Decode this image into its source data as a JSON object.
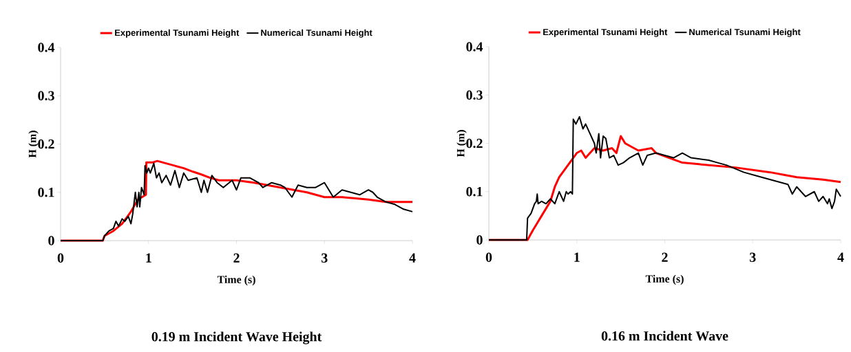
{
  "chart_data": [
    {
      "type": "line",
      "title": "0.19 m Incident Wave Height",
      "xlabel": "Time (s)",
      "ylabel": "H (m)",
      "xlim": [
        0,
        4
      ],
      "ylim": [
        0,
        0.4
      ],
      "xticks": [
        0,
        1,
        2,
        3,
        4
      ],
      "yticks": [
        0,
        0.1,
        0.2,
        0.3,
        0.4
      ],
      "legend": "top",
      "marker": "none",
      "series": [
        {
          "name": "Experimental Tsunami Height",
          "color": "#ff0000",
          "x": [
            0,
            0.48,
            0.5,
            0.6,
            0.7,
            0.8,
            0.88,
            0.97,
            0.975,
            1.05,
            1.1,
            1.2,
            1.3,
            1.4,
            1.5,
            1.6,
            1.7,
            1.8,
            2.0,
            2.2,
            2.5,
            2.8,
            3.0,
            3.2,
            3.5,
            3.7,
            4.0
          ],
          "values": [
            0,
            0,
            0.01,
            0.02,
            0.035,
            0.06,
            0.085,
            0.095,
            0.162,
            0.162,
            0.165,
            0.16,
            0.155,
            0.15,
            0.143,
            0.137,
            0.13,
            0.125,
            0.125,
            0.12,
            0.11,
            0.1,
            0.09,
            0.09,
            0.085,
            0.08,
            0.08
          ]
        },
        {
          "name": "Numerical Tsunami Height",
          "color": "#000000",
          "x": [
            0,
            0.48,
            0.5,
            0.55,
            0.6,
            0.63,
            0.66,
            0.7,
            0.73,
            0.77,
            0.8,
            0.82,
            0.85,
            0.87,
            0.89,
            0.9,
            0.92,
            0.95,
            0.96,
            0.98,
            1.0,
            1.02,
            1.06,
            1.09,
            1.12,
            1.15,
            1.2,
            1.25,
            1.3,
            1.35,
            1.4,
            1.45,
            1.55,
            1.6,
            1.63,
            1.67,
            1.72,
            1.78,
            1.85,
            1.95,
            2.0,
            2.05,
            2.15,
            2.25,
            2.3,
            2.4,
            2.5,
            2.55,
            2.63,
            2.7,
            2.8,
            2.9,
            3.0,
            3.1,
            3.2,
            3.3,
            3.4,
            3.5,
            3.55,
            3.6,
            3.7,
            3.8,
            3.9,
            4.0
          ],
          "values": [
            0,
            0,
            0.01,
            0.02,
            0.025,
            0.04,
            0.03,
            0.045,
            0.04,
            0.05,
            0.035,
            0.055,
            0.1,
            0.07,
            0.1,
            0.07,
            0.11,
            0.095,
            0.155,
            0.14,
            0.15,
            0.14,
            0.16,
            0.13,
            0.14,
            0.12,
            0.135,
            0.115,
            0.145,
            0.11,
            0.14,
            0.125,
            0.13,
            0.1,
            0.125,
            0.1,
            0.135,
            0.12,
            0.11,
            0.125,
            0.105,
            0.13,
            0.13,
            0.12,
            0.11,
            0.12,
            0.115,
            0.11,
            0.09,
            0.115,
            0.11,
            0.11,
            0.12,
            0.09,
            0.105,
            0.1,
            0.095,
            0.105,
            0.1,
            0.09,
            0.08,
            0.075,
            0.065,
            0.06
          ]
        }
      ]
    },
    {
      "type": "line",
      "title": "0.16 m Incident Wave",
      "xlabel": "Time (s)",
      "ylabel": "H (m)",
      "xlim": [
        0,
        4
      ],
      "ylim": [
        0,
        0.4
      ],
      "xticks": [
        0,
        1,
        2,
        3,
        4
      ],
      "yticks": [
        0,
        0.1,
        0.2,
        0.3,
        0.4
      ],
      "legend": "top",
      "marker": "none",
      "series": [
        {
          "name": "Experimental Tsunami Height",
          "color": "#ff0000",
          "x": [
            0,
            0.44,
            0.5,
            0.55,
            0.6,
            0.7,
            0.75,
            0.8,
            0.9,
            1.0,
            1.05,
            1.1,
            1.2,
            1.3,
            1.4,
            1.45,
            1.5,
            1.55,
            1.6,
            1.7,
            1.85,
            1.9,
            2.2,
            2.5,
            2.8,
            3.0,
            3.2,
            3.5,
            3.8,
            4.0
          ],
          "values": [
            0,
            0,
            0.02,
            0.035,
            0.05,
            0.08,
            0.11,
            0.13,
            0.155,
            0.18,
            0.185,
            0.17,
            0.19,
            0.185,
            0.19,
            0.18,
            0.215,
            0.2,
            0.195,
            0.185,
            0.19,
            0.18,
            0.16,
            0.155,
            0.15,
            0.145,
            0.14,
            0.13,
            0.125,
            0.12
          ]
        },
        {
          "name": "Numerical Tsunami Height",
          "color": "#000000",
          "x": [
            0,
            0.43,
            0.44,
            0.48,
            0.52,
            0.54,
            0.55,
            0.56,
            0.6,
            0.65,
            0.7,
            0.75,
            0.8,
            0.85,
            0.88,
            0.9,
            0.93,
            0.95,
            0.96,
            0.99,
            1.03,
            1.07,
            1.1,
            1.15,
            1.2,
            1.22,
            1.25,
            1.27,
            1.3,
            1.33,
            1.37,
            1.42,
            1.47,
            1.53,
            1.6,
            1.7,
            1.75,
            1.8,
            1.9,
            2.0,
            2.1,
            2.2,
            2.3,
            2.5,
            2.6,
            2.7,
            2.9,
            3.1,
            3.3,
            3.4,
            3.45,
            3.5,
            3.6,
            3.7,
            3.75,
            3.8,
            3.85,
            3.87,
            3.9,
            3.93,
            3.95,
            4.0
          ],
          "values": [
            0,
            0,
            0.045,
            0.055,
            0.075,
            0.08,
            0.095,
            0.075,
            0.08,
            0.075,
            0.085,
            0.075,
            0.1,
            0.08,
            0.1,
            0.095,
            0.1,
            0.095,
            0.25,
            0.24,
            0.255,
            0.23,
            0.24,
            0.22,
            0.2,
            0.18,
            0.22,
            0.17,
            0.215,
            0.21,
            0.17,
            0.175,
            0.155,
            0.16,
            0.17,
            0.18,
            0.155,
            0.175,
            0.18,
            0.175,
            0.17,
            0.18,
            0.17,
            0.165,
            0.16,
            0.155,
            0.14,
            0.13,
            0.12,
            0.115,
            0.095,
            0.11,
            0.09,
            0.1,
            0.08,
            0.09,
            0.075,
            0.085,
            0.065,
            0.08,
            0.105,
            0.09
          ]
        }
      ]
    }
  ]
}
